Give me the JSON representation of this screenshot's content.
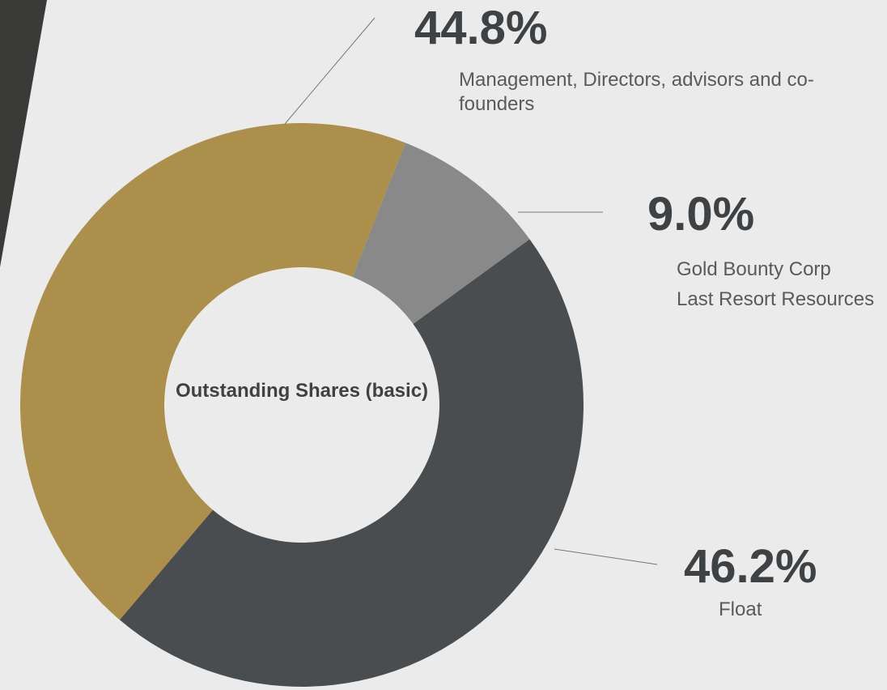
{
  "chart_data": {
    "type": "donut",
    "center_label": "Outstanding Shares (basic)",
    "categories": [
      "Management, Directors, advisors and co-founders",
      "Gold Bounty Corp\nLast Resort Resources",
      "Float"
    ],
    "values": [
      44.8,
      9.0,
      46.2
    ],
    "value_labels": [
      "44.8%",
      "9.0%",
      "46.2%"
    ],
    "colors": [
      "#ab8f4a",
      "#898989",
      "#4a4d4f"
    ]
  }
}
